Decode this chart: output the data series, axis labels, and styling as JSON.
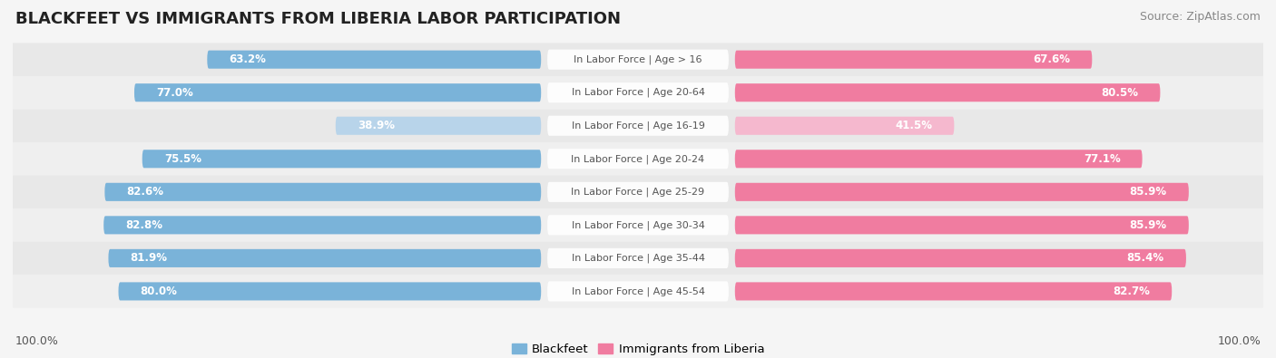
{
  "title": "BLACKFEET VS IMMIGRANTS FROM LIBERIA LABOR PARTICIPATION",
  "source": "Source: ZipAtlas.com",
  "categories": [
    "In Labor Force | Age > 16",
    "In Labor Force | Age 20-64",
    "In Labor Force | Age 16-19",
    "In Labor Force | Age 20-24",
    "In Labor Force | Age 25-29",
    "In Labor Force | Age 30-34",
    "In Labor Force | Age 35-44",
    "In Labor Force | Age 45-54"
  ],
  "blackfeet_values": [
    63.2,
    77.0,
    38.9,
    75.5,
    82.6,
    82.8,
    81.9,
    80.0
  ],
  "liberia_values": [
    67.6,
    80.5,
    41.5,
    77.1,
    85.9,
    85.9,
    85.4,
    82.7
  ],
  "blackfeet_color": "#7ab3d9",
  "blackfeet_color_light": "#b8d4ea",
  "liberia_color": "#f07ca0",
  "liberia_color_light": "#f5b8ce",
  "row_bg_even": "#e8e8e8",
  "row_bg_odd": "#efefef",
  "outer_bg": "#f5f5f5",
  "label_bg": "#ffffff",
  "legend_blackfeet": "Blackfeet",
  "legend_liberia": "Immigrants from Liberia",
  "bottom_left_label": "100.0%",
  "bottom_right_label": "100.0%",
  "title_fontsize": 13,
  "source_fontsize": 9,
  "bar_label_fontsize": 8.5,
  "cat_label_fontsize": 8,
  "legend_fontsize": 9.5
}
